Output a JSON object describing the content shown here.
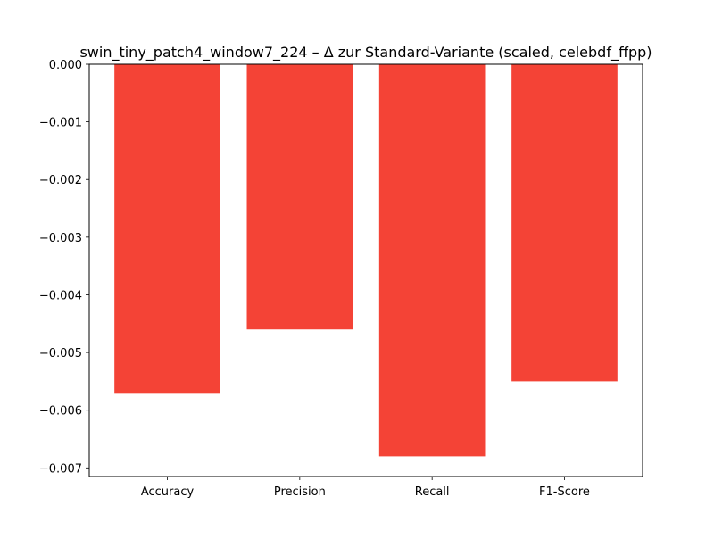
{
  "chart_data": {
    "type": "bar",
    "title": "swin_tiny_patch4_window7_224 – Δ zur Standard-Variante (scaled, celebdf_ffpp)",
    "xlabel": "",
    "ylabel": "",
    "categories": [
      "Accuracy",
      "Precision",
      "Recall",
      "F1-Score"
    ],
    "values": [
      -0.0057,
      -0.0046,
      -0.0068,
      -0.0055
    ],
    "ylim": [
      -0.00715,
      0.0
    ],
    "yticks": [
      0.0,
      -0.001,
      -0.002,
      -0.003,
      -0.004,
      -0.005,
      -0.006,
      -0.007
    ],
    "ytick_labels": [
      "0.000",
      "−0.001",
      "−0.002",
      "−0.003",
      "−0.004",
      "−0.005",
      "−0.006",
      "−0.007"
    ],
    "grid": false,
    "legend": "none",
    "bar_color": "#f44336"
  }
}
